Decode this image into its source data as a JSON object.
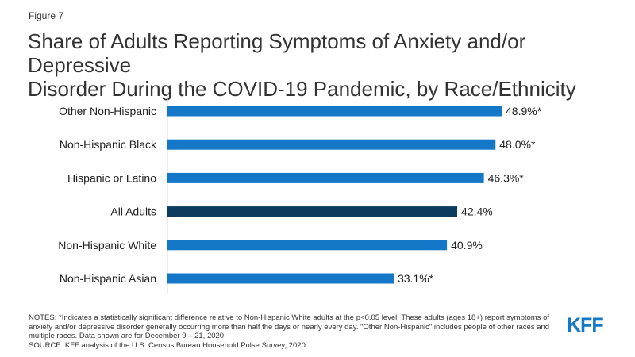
{
  "figure_label": "Figure 7",
  "title_lines": [
    "Share of Adults Reporting Symptoms of Anxiety and/or Depressive",
    "Disorder During the COVID-19 Pandemic, by Race/Ethnicity"
  ],
  "colors": {
    "bar": "#1577c7",
    "highlight": "#0c3b5e",
    "logo": "#1577c7"
  },
  "chart_data": {
    "type": "bar",
    "orientation": "horizontal",
    "categories": [
      "Other Non-Hispanic",
      "Non-Hispanic Black",
      "Hispanic or Latino",
      "All Adults",
      "Non-Hispanic White",
      "Non-Hispanic Asian"
    ],
    "values": [
      48.9,
      48.0,
      46.3,
      42.4,
      40.9,
      33.1
    ],
    "value_labels": [
      "48.9%*",
      "48.0%*",
      "46.3%*",
      "42.4%",
      "40.9%",
      "33.1%*"
    ],
    "highlight_category": "All Adults",
    "xlim": [
      0,
      50
    ],
    "grid": false,
    "legend": "none"
  },
  "notes": [
    "NOTES: *Indicates a statistically significant difference relative to Non-Hispanic White adults at the p<0.05 level. These adults (ages 18+) report symptoms of anxiety and/or depressive disorder generally occurring more than half the days or nearly every day. \"Other Non-Hispanic\" includes people of other races and multiple races. Data shown are for December 9 – 21, 2020.",
    "SOURCE: KFF analysis of the U.S. Census Bureau Household Pulse Survey, 2020."
  ],
  "logo_text": "KFF"
}
